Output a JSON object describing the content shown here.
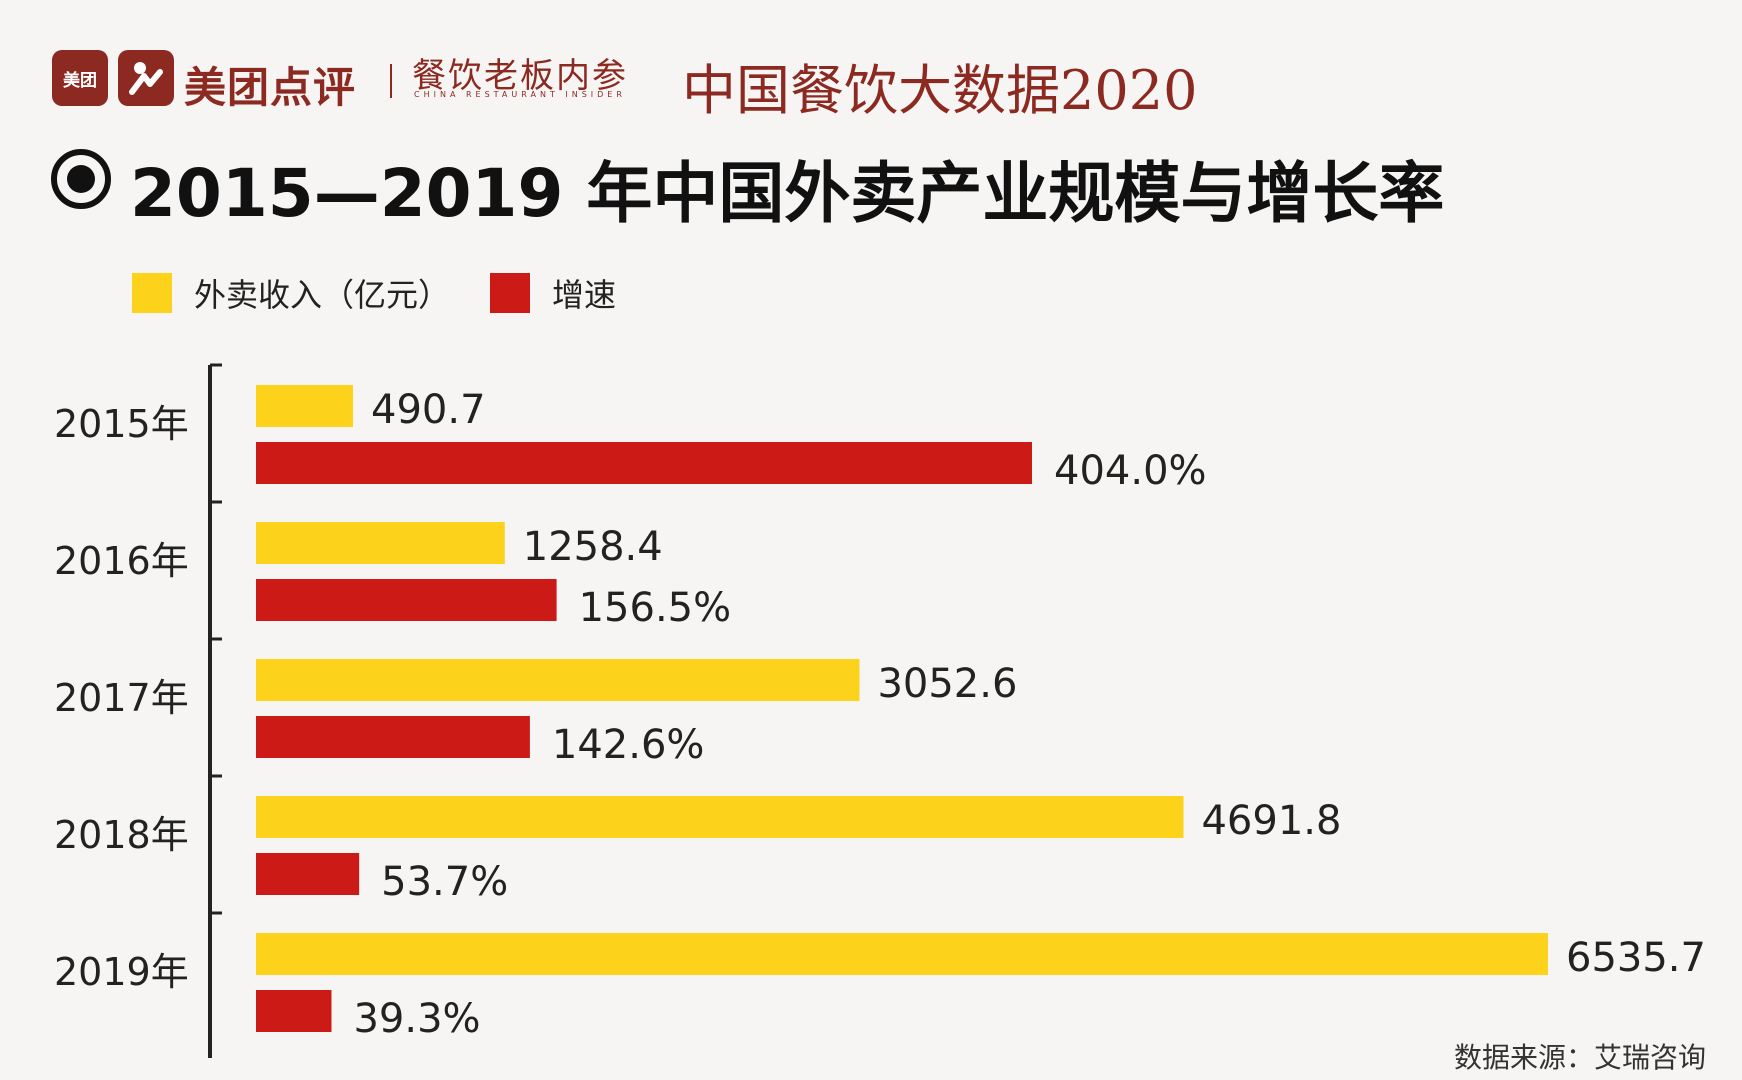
{
  "header": {
    "logo_small_text": "美团",
    "brand_name": "美团点评",
    "sub_brand": "餐饮老板内参",
    "sub_brand_en": "CHINA RESTAURANT INSIDER",
    "report_title": "中国餐饮大数据2020"
  },
  "title": "2015—2019 年中国外卖产业规模与增长率",
  "source": "数据来源：艾瑞咨询",
  "colors": {
    "brand": "#8c2a22",
    "revenue": "#fcd21a",
    "growth": "#cc1b16"
  },
  "chart_data": {
    "type": "bar",
    "orientation": "horizontal",
    "categories": [
      "2015年",
      "2016年",
      "2017年",
      "2018年",
      "2019年"
    ],
    "series": [
      {
        "name": "外卖收入（亿元）",
        "values": [
          490.7,
          1258.4,
          3052.6,
          4691.8,
          6535.7
        ],
        "labels": [
          "490.7",
          "1258.4",
          "3052.6",
          "4691.8",
          "6535.7"
        ]
      },
      {
        "name": "增速",
        "values": [
          404.0,
          156.5,
          142.6,
          53.7,
          39.3
        ],
        "labels": [
          "404.0%",
          "156.5%",
          "142.6%",
          "53.7%",
          "39.3%"
        ]
      }
    ],
    "legend_position": "top-left",
    "grid": false
  }
}
